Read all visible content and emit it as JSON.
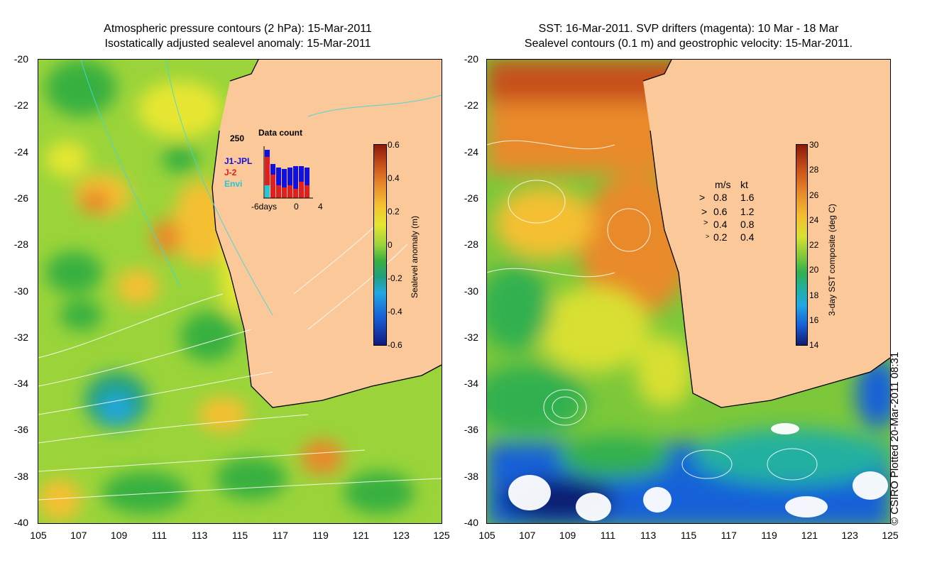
{
  "left_panel": {
    "title_line1": "Atmospheric pressure contours (2 hPa): 15-Mar-2011",
    "title_line2": "Isostatically adjusted sealevel anomaly: 15-Mar-2011",
    "colorbar_title": "Sealevel anomaly (m)",
    "colorbar_ticks": [
      "0.6",
      "0.4",
      "0.2",
      "0",
      "-0.2",
      "-0.4",
      "-0.6"
    ],
    "inset": {
      "title": "Data count",
      "ymax_label": "250",
      "series": [
        {
          "name": "J1-JPL",
          "color": "#1010e0"
        },
        {
          "name": "J-2",
          "color": "#e02020"
        },
        {
          "name": "Envi",
          "color": "#20c8d8"
        }
      ],
      "xticks": [
        "-6days",
        "0",
        "4"
      ]
    }
  },
  "right_panel": {
    "title_line1": "SST: 16-Mar-2011. SVP drifters (magenta): 10 Mar - 18 Mar",
    "title_line2": "Sealevel contours (0.1 m) and geostrophic velocity: 15-Mar-2011.",
    "colorbar_title": "3-day SST composite (deg C)",
    "colorbar_ticks": [
      "30",
      "28",
      "26",
      "24",
      "22",
      "20",
      "18",
      "16",
      "14"
    ],
    "velocity_legend": {
      "header_ms": "m/s",
      "header_kt": "kt",
      "rows": [
        {
          "ms": "0.8",
          "kt": "1.6"
        },
        {
          "ms": "0.6",
          "kt": "1.2"
        },
        {
          "ms": "0.4",
          "kt": "0.8"
        },
        {
          "ms": "0.2",
          "kt": "0.4"
        }
      ]
    }
  },
  "axes": {
    "y_ticks": [
      "-20",
      "-22",
      "-24",
      "-26",
      "-28",
      "-30",
      "-32",
      "-34",
      "-36",
      "-38",
      "-40"
    ],
    "x_ticks": [
      "105",
      "107",
      "109",
      "111",
      "113",
      "115",
      "117",
      "119",
      "121",
      "123",
      "125"
    ]
  },
  "copyright": "© CSIRO Plotted 20-Mar-2011 08:31",
  "colors": {
    "land": "#fbc89a",
    "coastline": "#000000"
  }
}
